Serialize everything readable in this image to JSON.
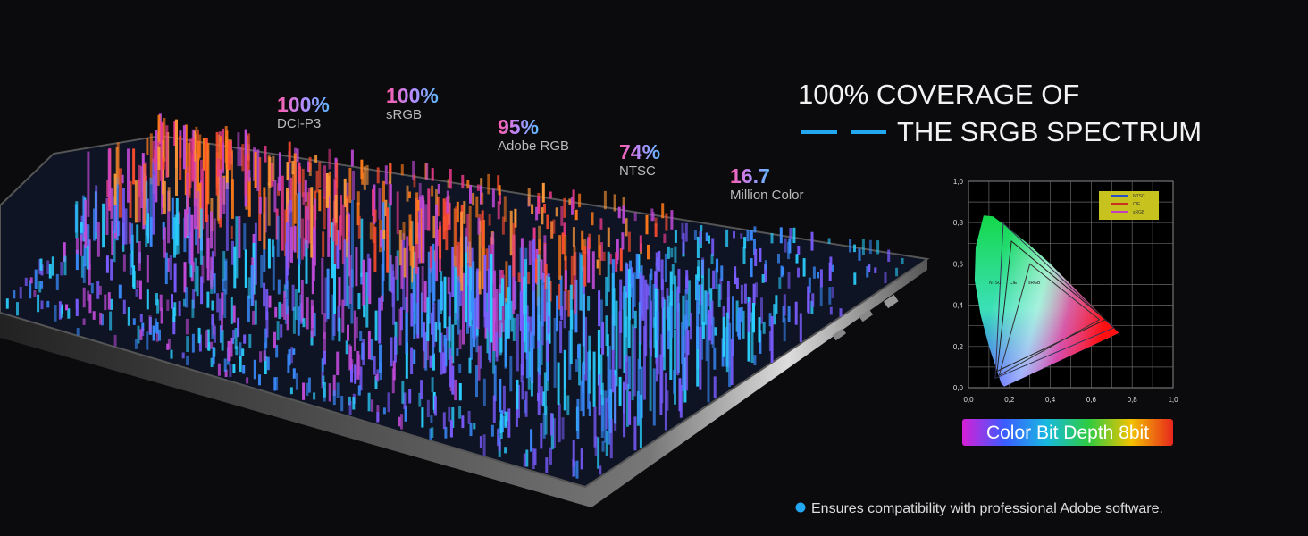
{
  "stats": [
    {
      "value": "100%",
      "label": "DCI-P3"
    },
    {
      "value": "100%",
      "label": "sRGB"
    },
    {
      "value": "95%",
      "label": "Adobe RGB"
    },
    {
      "value": "74%",
      "label": "NTSC"
    },
    {
      "value": "16.7",
      "label": "Million Color"
    }
  ],
  "headline": {
    "line1": "100% COVERAGE OF",
    "line2": "THE SRGB SPECTRUM"
  },
  "cie_chart": {
    "yticks": [
      "1,0",
      "0,8",
      "0,6",
      "0,4",
      "0,2",
      "0,0"
    ],
    "xticks": [
      "0,0",
      "0,2",
      "0,4",
      "0,6",
      "0,8",
      "1,0"
    ],
    "legend": [
      "NTSC",
      "CIE",
      "sRGB"
    ],
    "gamut_labels": [
      "NTSC",
      "CIE",
      "sRGB"
    ]
  },
  "badge": "Color Bit Depth 8bit",
  "note": "Ensures compatibility with professional Adobe software."
}
